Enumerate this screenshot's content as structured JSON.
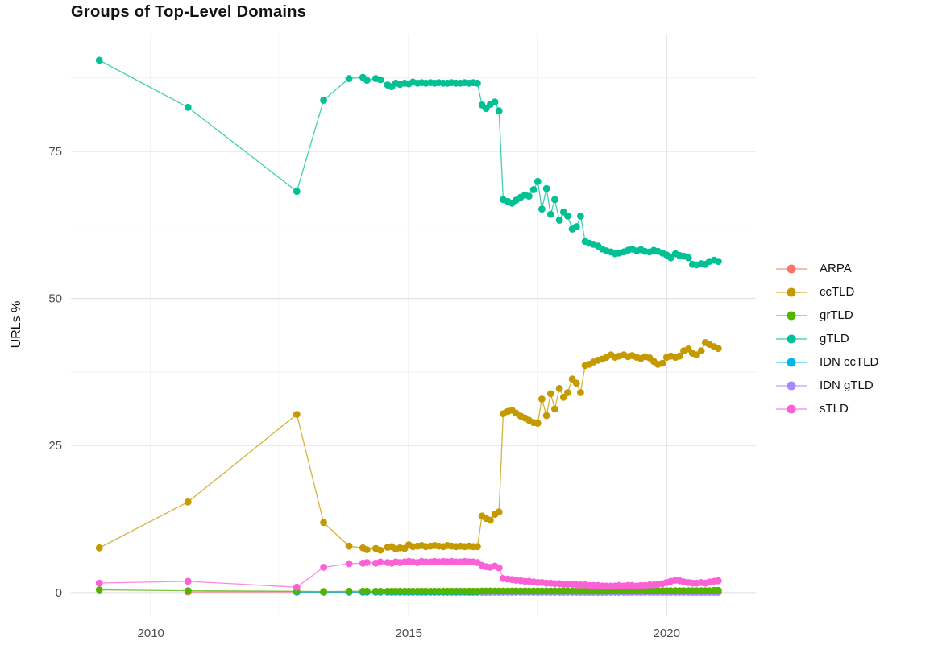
{
  "title": "Groups of Top-Level Domains",
  "y_axis": {
    "label": "URLs %",
    "tick_labels": [
      "0",
      "25",
      "50",
      "75"
    ]
  },
  "x_axis": {
    "tick_labels": [
      "2010",
      "2015",
      "2020"
    ]
  },
  "legend": {
    "items": [
      {
        "label": "ARPA",
        "color": "#F8766D"
      },
      {
        "label": "ccTLD",
        "color": "#C49A00"
      },
      {
        "label": "grTLD",
        "color": "#53B400"
      },
      {
        "label": "gTLD",
        "color": "#00C094"
      },
      {
        "label": "IDN ccTLD",
        "color": "#00B6EB"
      },
      {
        "label": "IDN gTLD",
        "color": "#A58AFF"
      },
      {
        "label": "sTLD",
        "color": "#FB61D7"
      }
    ]
  },
  "chart_data": {
    "type": "line",
    "title": "Groups of Top-Level Domains",
    "xlabel": "",
    "ylabel": "URLs %",
    "grid": true,
    "legend_position": "right",
    "xlim": [
      2008.45,
      2021.73
    ],
    "ylim": [
      -4,
      95
    ],
    "x_ticks": [
      2010,
      2015,
      2020
    ],
    "y_ticks": [
      0,
      25,
      50,
      75
    ],
    "x_minor": [
      2012.5,
      2017.5
    ],
    "y_minor": [
      12.5,
      37.5,
      62.5,
      87.5
    ],
    "grid_major_color": "#E2E2E2",
    "grid_minor_color": "#F0F0F0",
    "x": [
      2009.0,
      2010.72,
      2012.83,
      2013.35,
      2013.84,
      2014.11,
      2014.19,
      2014.36,
      2014.45,
      2014.59,
      2014.67,
      2014.75,
      2014.83,
      2014.92,
      2015.0,
      2015.08,
      2015.17,
      2015.25,
      2015.33,
      2015.42,
      2015.5,
      2015.58,
      2015.67,
      2015.75,
      2015.83,
      2015.92,
      2016.0,
      2016.08,
      2016.17,
      2016.25,
      2016.33,
      2016.42,
      2016.5,
      2016.58,
      2016.67,
      2016.75,
      2016.83,
      2016.92,
      2017.0,
      2017.08,
      2017.17,
      2017.25,
      2017.33,
      2017.42,
      2017.5,
      2017.58,
      2017.67,
      2017.75,
      2017.83,
      2017.92,
      2018.0,
      2018.08,
      2018.17,
      2018.25,
      2018.33,
      2018.42,
      2018.5,
      2018.58,
      2018.67,
      2018.75,
      2018.83,
      2018.92,
      2019.0,
      2019.08,
      2019.17,
      2019.25,
      2019.33,
      2019.42,
      2019.5,
      2019.58,
      2019.67,
      2019.75,
      2019.83,
      2019.92,
      2020.0,
      2020.08,
      2020.17,
      2020.25,
      2020.33,
      2020.42,
      2020.5,
      2020.58,
      2020.67,
      2020.75,
      2020.83,
      2020.92,
      2021.0
    ],
    "series": [
      {
        "name": "ARPA",
        "color": "#F8766D",
        "values": [
          null,
          0.1,
          0.1,
          0.05,
          0.05,
          0.05,
          0.05,
          0.05,
          0.05,
          0.05,
          0.05,
          0.05,
          0.05,
          0.05,
          0.05,
          0.05,
          0.05,
          0.05,
          0.05,
          0.05,
          0.05,
          0.05,
          0.05,
          0.05,
          0.05,
          0.05,
          0.05,
          0.05,
          0.05,
          0.05,
          0.05,
          0.05,
          0.05,
          0.05,
          0.05,
          0.05,
          0.05,
          0.05,
          0.05,
          0.05,
          0.05,
          0.05,
          0.05,
          0.05,
          0.05,
          0.05,
          0.05,
          0.05,
          0.05,
          0.05,
          0.05,
          0.05,
          0.05,
          0.05,
          0.05,
          0.05,
          0.05,
          0.05,
          0.05,
          0.05,
          0.05,
          0.05,
          0.05,
          0.05,
          0.05,
          0.05,
          0.05,
          0.05,
          0.05,
          0.05,
          0.05,
          0.05,
          0.05,
          0.05,
          0.05,
          0.05,
          0.05,
          0.05,
          0.05,
          0.05,
          0.05,
          0.05,
          0.05,
          0.05,
          0.05,
          0.05,
          0.05
        ]
      },
      {
        "name": "ccTLD",
        "color": "#C49A00",
        "values": [
          7.6,
          15.4,
          30.3,
          11.9,
          7.9,
          7.6,
          7.3,
          7.5,
          7.2,
          7.7,
          7.8,
          7.4,
          7.6,
          7.5,
          8.1,
          7.8,
          7.9,
          8.0,
          7.8,
          7.9,
          8.0,
          7.9,
          7.8,
          8.0,
          7.9,
          7.8,
          7.9,
          7.8,
          7.9,
          7.8,
          7.8,
          13.0,
          12.6,
          12.3,
          13.3,
          13.7,
          30.4,
          30.8,
          31.0,
          30.5,
          30.0,
          29.7,
          29.3,
          28.9,
          28.8,
          32.9,
          30.1,
          33.8,
          31.2,
          34.7,
          33.2,
          34.0,
          36.3,
          35.6,
          34.0,
          38.6,
          38.8,
          39.2,
          39.5,
          39.7,
          40.0,
          40.4,
          40.0,
          40.2,
          40.4,
          40.1,
          40.3,
          40.0,
          39.8,
          40.1,
          39.9,
          39.3,
          38.8,
          39.0,
          40.0,
          40.2,
          40.0,
          40.2,
          41.1,
          41.4,
          40.7,
          40.4,
          41.1,
          42.5,
          42.2,
          41.8,
          41.5
        ]
      },
      {
        "name": "grTLD",
        "color": "#53B400",
        "values": [
          0.45,
          0.3,
          0.2,
          0.15,
          0.2,
          0.2,
          0.2,
          0.2,
          0.2,
          0.2,
          0.2,
          0.2,
          0.2,
          0.2,
          0.2,
          0.2,
          0.2,
          0.2,
          0.2,
          0.2,
          0.2,
          0.2,
          0.2,
          0.2,
          0.2,
          0.2,
          0.2,
          0.2,
          0.2,
          0.2,
          0.2,
          0.25,
          0.25,
          0.25,
          0.25,
          0.25,
          0.25,
          0.25,
          0.25,
          0.25,
          0.25,
          0.25,
          0.25,
          0.25,
          0.25,
          0.25,
          0.25,
          0.25,
          0.25,
          0.25,
          0.25,
          0.25,
          0.25,
          0.25,
          0.25,
          0.25,
          0.25,
          0.25,
          0.25,
          0.25,
          0.25,
          0.25,
          0.3,
          0.3,
          0.3,
          0.3,
          0.3,
          0.3,
          0.3,
          0.3,
          0.3,
          0.3,
          0.3,
          0.3,
          0.3,
          0.3,
          0.3,
          0.3,
          0.3,
          0.3,
          0.3,
          0.3,
          0.3,
          0.3,
          0.3,
          0.35,
          0.35
        ]
      },
      {
        "name": "gTLD",
        "color": "#00C094",
        "values": [
          90.5,
          82.5,
          68.2,
          83.7,
          87.4,
          87.6,
          87.1,
          87.4,
          87.2,
          86.3,
          86.0,
          86.6,
          86.4,
          86.6,
          86.5,
          86.8,
          86.6,
          86.7,
          86.6,
          86.7,
          86.6,
          86.7,
          86.6,
          86.6,
          86.7,
          86.6,
          86.6,
          86.7,
          86.6,
          86.7,
          86.6,
          82.9,
          82.3,
          83.0,
          83.4,
          81.9,
          66.8,
          66.5,
          66.2,
          66.7,
          67.2,
          67.6,
          67.4,
          68.5,
          69.9,
          65.2,
          68.7,
          64.3,
          66.8,
          63.3,
          64.7,
          64.0,
          61.8,
          62.2,
          64.0,
          59.7,
          59.4,
          59.2,
          58.9,
          58.4,
          58.1,
          57.9,
          57.6,
          57.7,
          57.9,
          58.2,
          58.4,
          58.1,
          58.3,
          58.0,
          57.9,
          58.2,
          58.0,
          57.7,
          57.4,
          56.9,
          57.6,
          57.3,
          57.2,
          56.9,
          55.8,
          55.7,
          55.9,
          55.8,
          56.3,
          56.5,
          56.3
        ]
      },
      {
        "name": "IDN ccTLD",
        "color": "#00B6EB",
        "values": [
          null,
          null,
          0.05,
          0.05,
          0.05,
          0.05,
          0.05,
          0.05,
          0.05,
          0.05,
          0.05,
          0.05,
          0.05,
          0.05,
          0.05,
          0.05,
          0.05,
          0.05,
          0.05,
          0.05,
          0.05,
          0.05,
          0.05,
          0.05,
          0.05,
          0.05,
          0.05,
          0.05,
          0.05,
          0.05,
          0.05,
          0.05,
          0.05,
          0.05,
          0.05,
          0.05,
          0.05,
          0.05,
          0.05,
          0.05,
          0.05,
          0.05,
          0.05,
          0.05,
          0.05,
          0.05,
          0.05,
          0.05,
          0.05,
          0.05,
          0.05,
          0.05,
          0.05,
          0.05,
          0.05,
          0.05,
          0.05,
          0.05,
          0.05,
          0.05,
          0.05,
          0.05,
          0.05,
          0.05,
          0.05,
          0.05,
          0.05,
          0.05,
          0.05,
          0.05,
          0.05,
          0.05,
          0.05,
          0.05,
          0.05,
          0.05,
          0.05,
          0.05,
          0.05,
          0.05,
          0.05,
          0.05,
          0.05,
          0.05,
          0.05,
          0.05,
          0.05
        ]
      },
      {
        "name": "IDN gTLD",
        "color": "#A58AFF",
        "values": [
          null,
          null,
          null,
          null,
          null,
          null,
          null,
          null,
          null,
          null,
          null,
          null,
          null,
          null,
          null,
          null,
          null,
          null,
          null,
          null,
          null,
          null,
          null,
          null,
          null,
          null,
          null,
          null,
          null,
          null,
          null,
          0.05,
          0.05,
          0.05,
          0.05,
          0.05,
          0.05,
          0.05,
          0.05,
          0.05,
          0.05,
          0.05,
          0.05,
          0.05,
          0.05,
          0.05,
          0.05,
          0.05,
          0.05,
          0.05,
          0.05,
          0.05,
          0.05,
          0.05,
          0.05,
          0.05,
          0.05,
          0.05,
          0.05,
          0.05,
          0.05,
          0.05,
          0.05,
          0.05,
          0.05,
          0.05,
          0.05,
          0.05,
          0.05,
          0.05,
          0.05,
          0.05,
          0.05,
          0.05,
          0.05,
          0.05,
          0.05,
          0.05,
          0.05,
          0.05,
          0.05,
          0.05,
          0.05,
          0.05,
          0.05,
          0.05,
          0.05
        ]
      },
      {
        "name": "sTLD",
        "color": "#FB61D7",
        "values": [
          1.6,
          1.9,
          0.9,
          4.3,
          4.9,
          5.0,
          5.1,
          5.0,
          5.2,
          5.1,
          5.0,
          5.2,
          5.1,
          5.2,
          5.3,
          5.2,
          5.1,
          5.3,
          5.2,
          5.2,
          5.3,
          5.2,
          5.3,
          5.2,
          5.3,
          5.2,
          5.2,
          5.3,
          5.2,
          5.2,
          5.1,
          4.6,
          4.4,
          4.3,
          4.5,
          4.2,
          2.4,
          2.3,
          2.2,
          2.1,
          2.0,
          1.9,
          1.9,
          1.8,
          1.7,
          1.7,
          1.6,
          1.6,
          1.5,
          1.5,
          1.4,
          1.4,
          1.4,
          1.3,
          1.3,
          1.3,
          1.2,
          1.2,
          1.2,
          1.1,
          1.1,
          1.1,
          1.1,
          1.2,
          1.1,
          1.2,
          1.2,
          1.1,
          1.2,
          1.2,
          1.3,
          1.3,
          1.4,
          1.5,
          1.7,
          1.9,
          2.1,
          2.0,
          1.8,
          1.7,
          1.6,
          1.6,
          1.7,
          1.6,
          1.8,
          1.9,
          2.0
        ]
      }
    ]
  }
}
